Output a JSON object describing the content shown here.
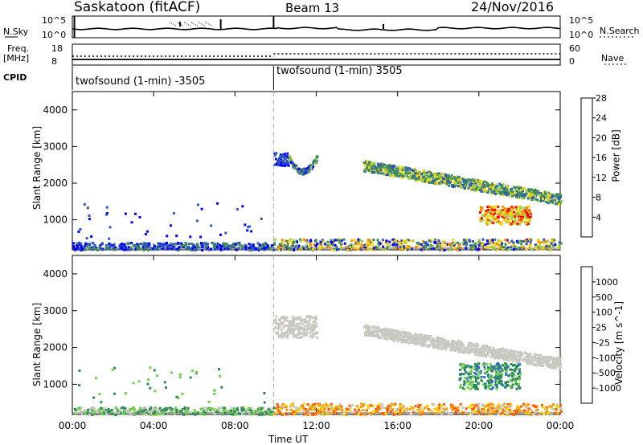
{
  "header": {
    "station": "Saskatoon (fitACF)",
    "beam": "Beam 13",
    "date": "24/Nov/2016"
  },
  "top_panels": {
    "nsky_label": "N.Sky",
    "nsky_ticks": [
      "10^5",
      "10^0"
    ],
    "nsearch_label": "N.Search",
    "nsearch_ticks": [
      "10^5",
      "10^0"
    ],
    "freq_label": "Freq.",
    "freq_unit": "[MHz]",
    "freq_ticks": [
      "18",
      "8"
    ],
    "nave_label": "Nave",
    "nave_ticks": [
      "60",
      "0"
    ],
    "cpid_label": "CPID",
    "cpid_segments": [
      "twofsound (1-min) -3505",
      "twofsound (1-min) 3505"
    ]
  },
  "chart_data": [
    {
      "type": "heatmap",
      "title": "",
      "ylabel": "Slant Range [km]",
      "xlabel": "",
      "ylim": [
        180,
        4500
      ],
      "yticks": [
        "1000",
        "2000",
        "3000",
        "4000"
      ],
      "x_ticks": [
        "00:00",
        "04:00",
        "08:00",
        "12:00",
        "16:00",
        "20:00",
        "00:00"
      ],
      "colorbar": {
        "label": "Power [dB]",
        "ticks": [
          "4",
          "8",
          "12",
          "16",
          "20",
          "24",
          "28"
        ],
        "colors": [
          "#0000ff",
          "#2f57b8",
          "#3e8c5a",
          "#9ccf45",
          "#ffd700",
          "#ff8c00",
          "#ff0000"
        ]
      },
      "features": [
        {
          "t_start": 9.9,
          "t_end": 10.6,
          "range_start": 2500,
          "range_end": 2850,
          "level": "low-mid"
        },
        {
          "t_start": 10.6,
          "t_end": 12.0,
          "range_start": 2300,
          "range_end": 2900,
          "level": "mid"
        },
        {
          "t_start": 14.3,
          "t_end": 24.0,
          "range_start": 1400,
          "range_end": 2700,
          "level": "mid-high"
        },
        {
          "t_start": 20.0,
          "t_end": 22.5,
          "range_start": 900,
          "range_end": 1400,
          "level": "high"
        },
        {
          "t_start": 0.0,
          "t_end": 24.0,
          "range_start": 180,
          "range_end": 450,
          "level": "low"
        }
      ]
    },
    {
      "type": "heatmap",
      "title": "",
      "ylabel": "Slant Range [km]",
      "xlabel": "Time UT",
      "ylim": [
        180,
        4500
      ],
      "yticks": [
        "1000",
        "2000",
        "3000",
        "4000"
      ],
      "x_ticks": [
        "00:00",
        "04:00",
        "08:00",
        "12:00",
        "16:00",
        "20:00",
        "00:00"
      ],
      "colorbar": {
        "label": "Velocity [m s^-1]",
        "ticks": [
          "1000",
          "500",
          "100",
          "25",
          "-25",
          "-100",
          "-500",
          "-1000"
        ],
        "colors": [
          "#1f3fa0",
          "#2f6fbf",
          "#2e8b57",
          "#6fd04a",
          "#c8c8c0",
          "#ffd700",
          "#ff9a00",
          "#ff5a00",
          "#ff0000"
        ]
      },
      "features": [
        {
          "t_start": 9.9,
          "t_end": 12.0,
          "range_start": 2300,
          "range_end": 2900,
          "level": "ground-scatter"
        },
        {
          "t_start": 14.3,
          "t_end": 24.0,
          "range_start": 1400,
          "range_end": 2500,
          "level": "ground-scatter"
        },
        {
          "t_start": 19.0,
          "t_end": 22.0,
          "range_start": 900,
          "range_end": 1600,
          "level": "positive-100"
        },
        {
          "t_start": 9.9,
          "t_end": 24.0,
          "range_start": 180,
          "range_end": 500,
          "level": "negative"
        }
      ]
    }
  ]
}
